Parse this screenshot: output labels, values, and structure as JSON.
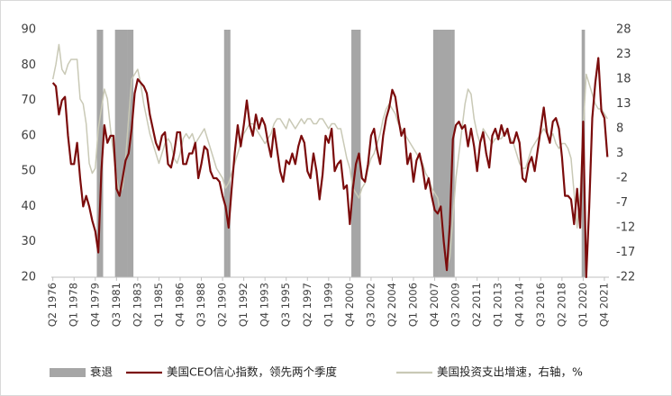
{
  "chart_data": {
    "type": "line",
    "categories": [
      "Q2 1976",
      null,
      null,
      null,
      null,
      null,
      null,
      "Q1 1978",
      null,
      null,
      null,
      null,
      null,
      null,
      "Q4 1979",
      null,
      null,
      null,
      null,
      null,
      null,
      "Q3 1981",
      null,
      null,
      null,
      null,
      null,
      null,
      "Q2 1983",
      null,
      null,
      null,
      null,
      null,
      null,
      "Q1 1985",
      null,
      null,
      null,
      null,
      null,
      null,
      "Q4 1986",
      null,
      null,
      null,
      null,
      null,
      null,
      "Q3 1988",
      null,
      null,
      null,
      null,
      null,
      null,
      "Q2 1990",
      null,
      null,
      null,
      null,
      null,
      null,
      "Q1 1992",
      null,
      null,
      null,
      null,
      null,
      null,
      "Q4 1993",
      null,
      null,
      null,
      null,
      null,
      null,
      "Q3 1995",
      null,
      null,
      null,
      null,
      null,
      null,
      "Q2 1997",
      null,
      null,
      null,
      null,
      null,
      null,
      "Q1 1999",
      null,
      null,
      null,
      null,
      null,
      null,
      "Q4 2000",
      null,
      null,
      null,
      null,
      null,
      null,
      "Q3 2002",
      null,
      null,
      null,
      null,
      null,
      null,
      "Q2 2004",
      null,
      null,
      null,
      null,
      null,
      null,
      "Q1 2006",
      null,
      null,
      null,
      null,
      null,
      null,
      "Q4 2007",
      null,
      null,
      null,
      null,
      null,
      null,
      "Q3 2009",
      null,
      null,
      null,
      null,
      null,
      null,
      "Q2 2011",
      null,
      null,
      null,
      null,
      null,
      null,
      "Q1 2013",
      null,
      null,
      null,
      null,
      null,
      null,
      "Q4 2014",
      null,
      null,
      null,
      null,
      null,
      null,
      "Q3 2016",
      null,
      null,
      null,
      null,
      null,
      null,
      "Q2 2018",
      null,
      null,
      null,
      null,
      null,
      null,
      "Q1 2020",
      null,
      null,
      null,
      null,
      null,
      null,
      "Q4 2021",
      null
    ],
    "series": [
      {
        "name": "衰退",
        "type": "bar",
        "color": "#a6a6a6",
        "values": [
          null,
          null,
          null,
          null,
          null,
          null,
          null,
          null,
          null,
          null,
          null,
          null,
          null,
          null,
          null,
          90,
          90,
          null,
          null,
          null,
          null,
          90,
          90,
          90,
          90,
          90,
          90,
          null,
          null,
          null,
          null,
          null,
          null,
          null,
          null,
          null,
          null,
          null,
          null,
          null,
          null,
          null,
          null,
          null,
          null,
          null,
          null,
          null,
          null,
          null,
          null,
          null,
          null,
          null,
          null,
          null,
          null,
          90,
          90,
          null,
          null,
          null,
          null,
          null,
          null,
          null,
          null,
          null,
          null,
          null,
          null,
          null,
          null,
          null,
          null,
          null,
          null,
          null,
          null,
          null,
          null,
          null,
          null,
          null,
          null,
          null,
          null,
          null,
          null,
          null,
          null,
          null,
          null,
          null,
          null,
          null,
          null,
          null,
          null,
          90,
          90,
          90,
          null,
          null,
          null,
          null,
          null,
          null,
          null,
          null,
          null,
          null,
          null,
          null,
          null,
          null,
          null,
          null,
          null,
          null,
          null,
          null,
          null,
          null,
          null,
          null,
          90,
          90,
          90,
          90,
          90,
          90,
          90,
          null,
          null,
          null,
          null,
          null,
          null,
          null,
          null,
          null,
          null,
          null,
          null,
          null,
          null,
          null,
          null,
          null,
          null,
          null,
          null,
          null,
          null,
          null,
          null,
          null,
          null,
          null,
          null,
          null,
          null,
          null,
          null,
          null,
          null,
          null,
          null,
          null,
          null,
          null,
          null,
          null,
          null,
          90,
          null,
          null,
          null,
          null,
          null,
          null,
          null,
          null
        ]
      },
      {
        "name": "美国CEO信心指数，领先两个季度",
        "color": "#7b0c0c",
        "values": [
          75,
          74,
          66,
          70,
          71,
          60,
          52,
          52,
          58,
          48,
          40,
          43,
          40,
          36,
          33,
          27,
          50,
          63,
          58,
          60,
          60,
          45,
          43,
          48,
          53,
          55,
          62,
          72,
          76,
          75,
          74,
          72,
          66,
          62,
          58,
          56,
          60,
          61,
          52,
          51,
          55,
          61,
          61,
          52,
          52,
          55,
          55,
          58,
          48,
          52,
          57,
          56,
          50,
          48,
          48,
          47,
          43,
          40,
          34,
          45,
          55,
          63,
          57,
          63,
          70,
          63,
          60,
          66,
          62,
          65,
          63,
          58,
          54,
          62,
          56,
          50,
          47,
          53,
          52,
          55,
          52,
          57,
          60,
          58,
          50,
          48,
          55,
          50,
          42,
          49,
          60,
          58,
          62,
          50,
          52,
          53,
          45,
          46,
          35,
          45,
          52,
          55,
          48,
          47,
          52,
          60,
          62,
          56,
          52,
          60,
          65,
          68,
          73,
          71,
          65,
          60,
          62,
          52,
          55,
          47,
          53,
          55,
          51,
          45,
          48,
          43,
          39,
          38,
          40,
          30,
          22,
          35,
          59,
          63,
          64,
          62,
          63,
          57,
          62,
          57,
          50,
          58,
          61,
          55,
          51,
          60,
          62,
          59,
          63,
          60,
          62,
          58,
          58,
          61,
          58,
          48,
          47,
          52,
          54,
          50,
          56,
          62,
          68,
          61,
          58,
          64,
          65,
          62,
          54,
          43,
          43,
          42,
          35,
          45,
          34,
          64,
          20,
          40,
          65,
          75,
          82,
          67,
          65,
          54
        ]
      },
      {
        "name": "美国投资支出增速，右轴，%",
        "color": "#c9c9b6",
        "axis": "y2",
        "values": [
          18,
          21,
          25,
          20,
          19,
          21,
          22,
          22,
          22,
          14,
          13,
          9,
          1,
          -1,
          0,
          8,
          12,
          16,
          14,
          8,
          3,
          -2,
          -5,
          -4,
          2,
          10,
          18,
          19,
          20,
          17,
          13,
          10,
          7,
          5,
          3,
          1,
          3,
          5,
          6,
          5,
          2,
          1,
          3,
          6,
          7,
          6,
          7,
          5,
          6,
          7,
          8,
          6,
          4,
          2,
          0,
          -1,
          -2,
          -4,
          -3,
          -1,
          1,
          3,
          5,
          7,
          8,
          9,
          9,
          8,
          7,
          6,
          5,
          6,
          7,
          9,
          10,
          10,
          9,
          8,
          10,
          9,
          8,
          9,
          10,
          9,
          10,
          10,
          9,
          9,
          10,
          10,
          9,
          8,
          9,
          9,
          8,
          8,
          5,
          2,
          0,
          -4,
          -5,
          -6,
          -4,
          -3,
          0,
          2,
          3,
          5,
          7,
          10,
          12,
          13,
          12,
          11,
          9,
          8,
          7,
          6,
          5,
          4,
          3,
          2,
          1,
          -1,
          -2,
          -4,
          -5,
          -6,
          -10,
          -15,
          -20,
          -18,
          -10,
          -2,
          3,
          8,
          13,
          16,
          15,
          10,
          7,
          5,
          8,
          7,
          6,
          5,
          6,
          6,
          6,
          7,
          7,
          6,
          5,
          3,
          1,
          0,
          0,
          2,
          4,
          5,
          6,
          7,
          8,
          7,
          6,
          7,
          5,
          4,
          5,
          5,
          4,
          2,
          -5,
          -12,
          -5,
          8,
          19,
          17,
          15,
          13,
          12,
          12,
          11,
          10
        ]
      }
    ],
    "ylim": [
      20,
      90
    ],
    "yticks": [
      20,
      30,
      40,
      50,
      60,
      70,
      80,
      90
    ],
    "y2lim": [
      -22,
      28
    ],
    "y2ticks": [
      -22,
      -17,
      -12,
      -7,
      -2,
      3,
      8,
      13,
      18,
      23,
      28
    ],
    "grid": false,
    "legend": "bottom"
  }
}
